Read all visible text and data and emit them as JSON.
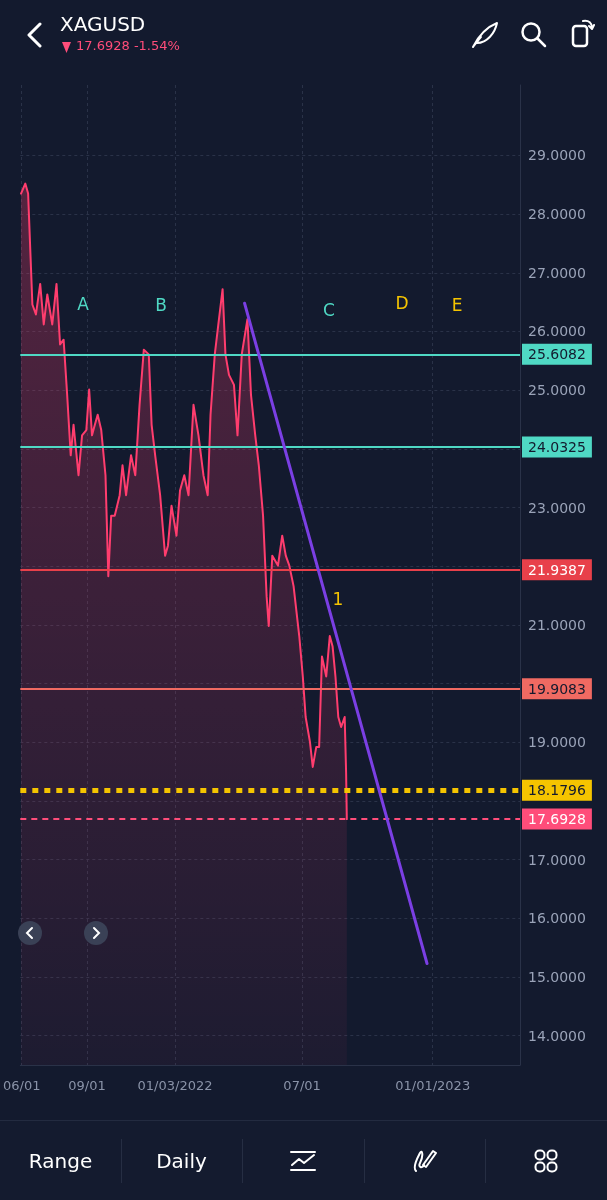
{
  "chart_data": {
    "type": "area",
    "title": "XAGUSD",
    "subtitle": "17.6928 -1.54%",
    "xlim": [
      "2021-05-30",
      "2023-05-04"
    ],
    "xticks": [
      {
        "value": "2021-06-01",
        "label": "06/01"
      },
      {
        "value": "2021-09-01",
        "label": "09/01"
      },
      {
        "value": "2022-01-03",
        "label": "01/03/2022"
      },
      {
        "value": "2022-07-01",
        "label": "07/01"
      },
      {
        "value": "2023-01-01",
        "label": "01/01/2023"
      }
    ],
    "ylim": [
      13.5,
      30.2
    ],
    "yticks": [
      {
        "value": 14,
        "label": "14.0000"
      },
      {
        "value": 15,
        "label": "15.0000"
      },
      {
        "value": 16,
        "label": "16.0000"
      },
      {
        "value": 17,
        "label": "17.0000"
      },
      {
        "value": 18,
        "label": null
      },
      {
        "value": 19,
        "label": "19.0000"
      },
      {
        "value": 20,
        "label": null
      },
      {
        "value": 21,
        "label": "21.0000"
      },
      {
        "value": 22,
        "label": null
      },
      {
        "value": 23,
        "label": "23.0000"
      },
      {
        "value": 24,
        "label": null
      },
      {
        "value": 25,
        "label": "25.0000"
      },
      {
        "value": 26,
        "label": "26.0000"
      },
      {
        "value": 27,
        "label": "27.0000"
      },
      {
        "value": 28,
        "label": "28.0000"
      },
      {
        "value": 29,
        "label": "29.0000"
      }
    ],
    "grid": true,
    "marker": "none",
    "series": [
      {
        "color": "#ff3d6e",
        "x": [
          "2021-05-31",
          "2021-06-06",
          "2021-06-10",
          "2021-06-16",
          "2021-06-21",
          "2021-06-27",
          "2021-07-02",
          "2021-07-07",
          "2021-07-14",
          "2021-07-20",
          "2021-07-25",
          "2021-07-30",
          "2021-08-04",
          "2021-08-09",
          "2021-08-13",
          "2021-08-20",
          "2021-08-25",
          "2021-08-31",
          "2021-09-04",
          "2021-09-08",
          "2021-09-12",
          "2021-09-16",
          "2021-09-21",
          "2021-09-27",
          "2021-10-01",
          "2021-10-05",
          "2021-10-10",
          "2021-10-17",
          "2021-10-21",
          "2021-10-26",
          "2021-11-02",
          "2021-11-08",
          "2021-11-14",
          "2021-11-20",
          "2021-11-27",
          "2021-12-01",
          "2021-12-06",
          "2021-12-13",
          "2021-12-20",
          "2021-12-24",
          "2021-12-29",
          "2022-01-05",
          "2022-01-10",
          "2022-01-16",
          "2022-01-22",
          "2022-01-29",
          "2022-02-05",
          "2022-02-12",
          "2022-02-18",
          "2022-02-22",
          "2022-02-28",
          "2022-03-05",
          "2022-03-11",
          "2022-03-15",
          "2022-03-20",
          "2022-03-27",
          "2022-04-01",
          "2022-04-07",
          "2022-04-15",
          "2022-04-20",
          "2022-04-26",
          "2022-05-01",
          "2022-05-07",
          "2022-05-12",
          "2022-05-15",
          "2022-05-20",
          "2022-05-28",
          "2022-06-03",
          "2022-06-08",
          "2022-06-13",
          "2022-06-19",
          "2022-06-27",
          "2022-07-02",
          "2022-07-06",
          "2022-07-12",
          "2022-07-16",
          "2022-07-21",
          "2022-07-25",
          "2022-07-29",
          "2022-08-04",
          "2022-08-09",
          "2022-08-13",
          "2022-08-17",
          "2022-08-21",
          "2022-08-25",
          "2022-08-30",
          "2022-09-01",
          "2022-09-02"
        ],
        "values": [
          28.35,
          28.52,
          28.35,
          26.46,
          26.29,
          26.81,
          26.12,
          26.63,
          26.12,
          26.81,
          25.78,
          25.86,
          24.92,
          23.89,
          24.41,
          23.55,
          24.23,
          24.32,
          25.01,
          24.23,
          24.41,
          24.58,
          24.32,
          23.55,
          21.83,
          22.86,
          22.86,
          23.21,
          23.72,
          23.21,
          23.89,
          23.55,
          24.75,
          25.69,
          25.61,
          24.41,
          23.89,
          23.21,
          22.18,
          22.35,
          23.03,
          22.52,
          23.29,
          23.55,
          23.21,
          24.75,
          24.23,
          23.55,
          23.21,
          24.58,
          25.61,
          26.12,
          26.72,
          25.61,
          25.26,
          25.09,
          24.23,
          25.61,
          26.21,
          24.92,
          24.23,
          23.72,
          22.86,
          21.49,
          20.98,
          22.18,
          22.01,
          22.52,
          22.18,
          22.01,
          21.66,
          20.81,
          20.12,
          19.43,
          19.01,
          18.58,
          18.92,
          18.92,
          20.46,
          20.12,
          20.81,
          20.63,
          20.12,
          19.43,
          19.26,
          19.43,
          18.49,
          17.69
        ]
      },
      {
        "type": "line",
        "color": "#7b3fe4",
        "x": [
          "2022-04-11",
          "2022-12-24"
        ],
        "values": [
          26.48,
          15.23
        ]
      }
    ],
    "ref_lines": [
      {
        "axis": "y",
        "value": 25.6082,
        "label": "25.6082",
        "color": "#4fd8c4",
        "line_style": "solid"
      },
      {
        "axis": "y",
        "value": 24.0325,
        "label": "24.0325",
        "color": "#4fd8c4",
        "line_style": "solid"
      },
      {
        "axis": "y",
        "value": 21.9387,
        "label": "21.9387",
        "color": "#e8404a",
        "line_style": "solid"
      },
      {
        "axis": "y",
        "value": 19.9083,
        "label": "19.9083",
        "color": "#f06a62",
        "line_style": "solid"
      },
      {
        "axis": "y",
        "value": 18.1796,
        "label": "18.1796",
        "color": "#f5c400",
        "line_style": "dotted"
      },
      {
        "axis": "y",
        "value": 17.6928,
        "label": "17.6928",
        "color": "#ff4d7a",
        "line_style": "dashed"
      }
    ],
    "annotations": [
      "A",
      "B",
      "C",
      "D",
      "E",
      "1",
      "Range",
      "Daily"
    ]
  }
}
